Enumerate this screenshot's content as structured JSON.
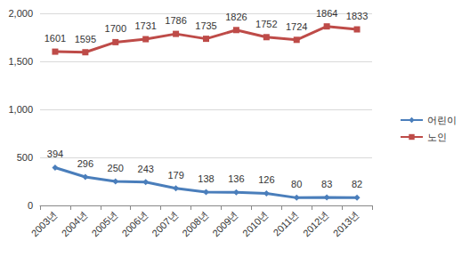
{
  "chart_data": {
    "type": "line",
    "categories": [
      "2003년",
      "2004년",
      "2005년",
      "2006년",
      "2007년",
      "2008년",
      "2009년",
      "2010년",
      "2011년",
      "2012년",
      "2013년"
    ],
    "series": [
      {
        "name": "어린이",
        "color": "#4a7ebb",
        "marker": "diamond",
        "values": [
          394,
          296,
          250,
          243,
          179,
          138,
          136,
          126,
          80,
          83,
          82
        ]
      },
      {
        "name": "노인",
        "color": "#be4b48",
        "marker": "square",
        "values": [
          1601,
          1595,
          1700,
          1731,
          1786,
          1735,
          1826,
          1752,
          1724,
          1864,
          1833
        ]
      }
    ],
    "ylim": [
      0,
      2000
    ],
    "yticks": [
      0,
      500,
      1000,
      1500,
      2000
    ],
    "grid": true,
    "legend": "right",
    "data_labels": true
  }
}
